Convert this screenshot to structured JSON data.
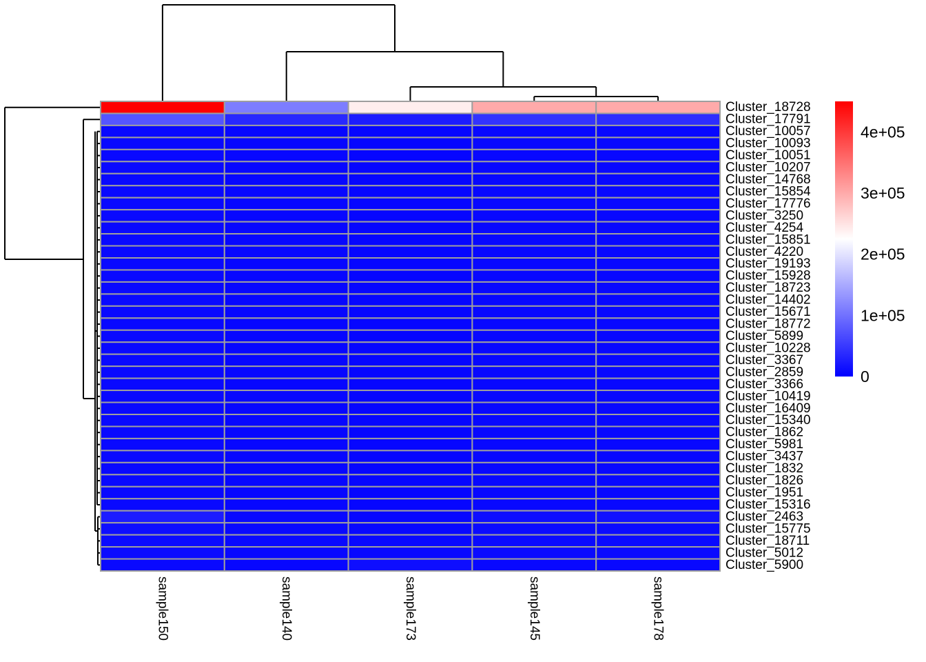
{
  "chart_data": {
    "type": "heatmap",
    "title": "",
    "xlabel": "",
    "ylabel": "",
    "columns": [
      "sample150",
      "sample140",
      "sample173",
      "sample145",
      "sample178"
    ],
    "rows": [
      "Cluster_18728",
      "Cluster_17791",
      "Cluster_10057",
      "Cluster_10093",
      "Cluster_10051",
      "Cluster_10207",
      "Cluster_14768",
      "Cluster_15854",
      "Cluster_17776",
      "Cluster_3250",
      "Cluster_4254",
      "Cluster_15851",
      "Cluster_4220",
      "Cluster_19193",
      "Cluster_15928",
      "Cluster_18723",
      "Cluster_14402",
      "Cluster_15671",
      "Cluster_18772",
      "Cluster_5899",
      "Cluster_10228",
      "Cluster_3367",
      "Cluster_2859",
      "Cluster_3366",
      "Cluster_10419",
      "Cluster_16409",
      "Cluster_15340",
      "Cluster_1862",
      "Cluster_5981",
      "Cluster_3437",
      "Cluster_1832",
      "Cluster_1826",
      "Cluster_1951",
      "Cluster_15316",
      "Cluster_2463",
      "Cluster_15775",
      "Cluster_18711",
      "Cluster_5012",
      "Cluster_5900"
    ],
    "values": [
      [
        450000,
        110000,
        240000,
        300000,
        300000
      ],
      [
        75000,
        35000,
        25000,
        45000,
        40000
      ],
      [
        8000,
        6000,
        5000,
        7000,
        7000
      ],
      [
        8000,
        6000,
        5000,
        7000,
        7000
      ],
      [
        8000,
        6000,
        5000,
        7000,
        7000
      ],
      [
        8000,
        6000,
        5000,
        7000,
        7000
      ],
      [
        8000,
        6000,
        5000,
        7000,
        7000
      ],
      [
        8000,
        6000,
        5000,
        7000,
        7000
      ],
      [
        8000,
        6000,
        5000,
        7000,
        7000
      ],
      [
        8000,
        6000,
        5000,
        7000,
        7000
      ],
      [
        8000,
        6000,
        5000,
        7000,
        7000
      ],
      [
        8000,
        6000,
        5000,
        7000,
        7000
      ],
      [
        8000,
        6000,
        5000,
        7000,
        7000
      ],
      [
        8000,
        6000,
        5000,
        7000,
        7000
      ],
      [
        8000,
        6000,
        5000,
        7000,
        7000
      ],
      [
        8000,
        6000,
        5000,
        7000,
        7000
      ],
      [
        8000,
        6000,
        5000,
        7000,
        7000
      ],
      [
        8000,
        6000,
        5000,
        7000,
        7000
      ],
      [
        8000,
        6000,
        5000,
        7000,
        7000
      ],
      [
        8000,
        6000,
        5000,
        7000,
        7000
      ],
      [
        8000,
        6000,
        5000,
        7000,
        7000
      ],
      [
        8000,
        6000,
        5000,
        7000,
        7000
      ],
      [
        8000,
        6000,
        5000,
        7000,
        7000
      ],
      [
        8000,
        6000,
        5000,
        7000,
        7000
      ],
      [
        8000,
        6000,
        5000,
        7000,
        7000
      ],
      [
        8000,
        6000,
        5000,
        7000,
        7000
      ],
      [
        8000,
        6000,
        5000,
        7000,
        7000
      ],
      [
        8000,
        6000,
        5000,
        7000,
        7000
      ],
      [
        8000,
        6000,
        5000,
        7000,
        7000
      ],
      [
        8000,
        6000,
        5000,
        7000,
        7000
      ],
      [
        8000,
        6000,
        5000,
        7000,
        7000
      ],
      [
        8000,
        6000,
        5000,
        7000,
        7000
      ],
      [
        8000,
        6000,
        5000,
        7000,
        7000
      ],
      [
        8000,
        6000,
        5000,
        7000,
        7000
      ],
      [
        25000,
        8000,
        6000,
        12000,
        15000
      ],
      [
        12000,
        8000,
        7000,
        10000,
        10000
      ],
      [
        10000,
        8000,
        7000,
        9000,
        9000
      ],
      [
        10000,
        7000,
        7000,
        9000,
        9000
      ],
      [
        8000,
        6000,
        12000,
        7000,
        7000
      ]
    ],
    "color_scale": {
      "min": 0,
      "max": 450000,
      "colors": [
        "#0000ff",
        "#ffffff",
        "#ff0000"
      ],
      "ticks": [
        {
          "value": 0,
          "label": "0"
        },
        {
          "value": 100000,
          "label": "1e+05"
        },
        {
          "value": 200000,
          "label": "2e+05"
        },
        {
          "value": 300000,
          "label": "3e+05"
        },
        {
          "value": 400000,
          "label": "4e+05"
        }
      ]
    },
    "cell_border_color": "#9e9e9e",
    "row_dendrogram": true,
    "column_dendrogram": true,
    "legend_position": "right"
  }
}
